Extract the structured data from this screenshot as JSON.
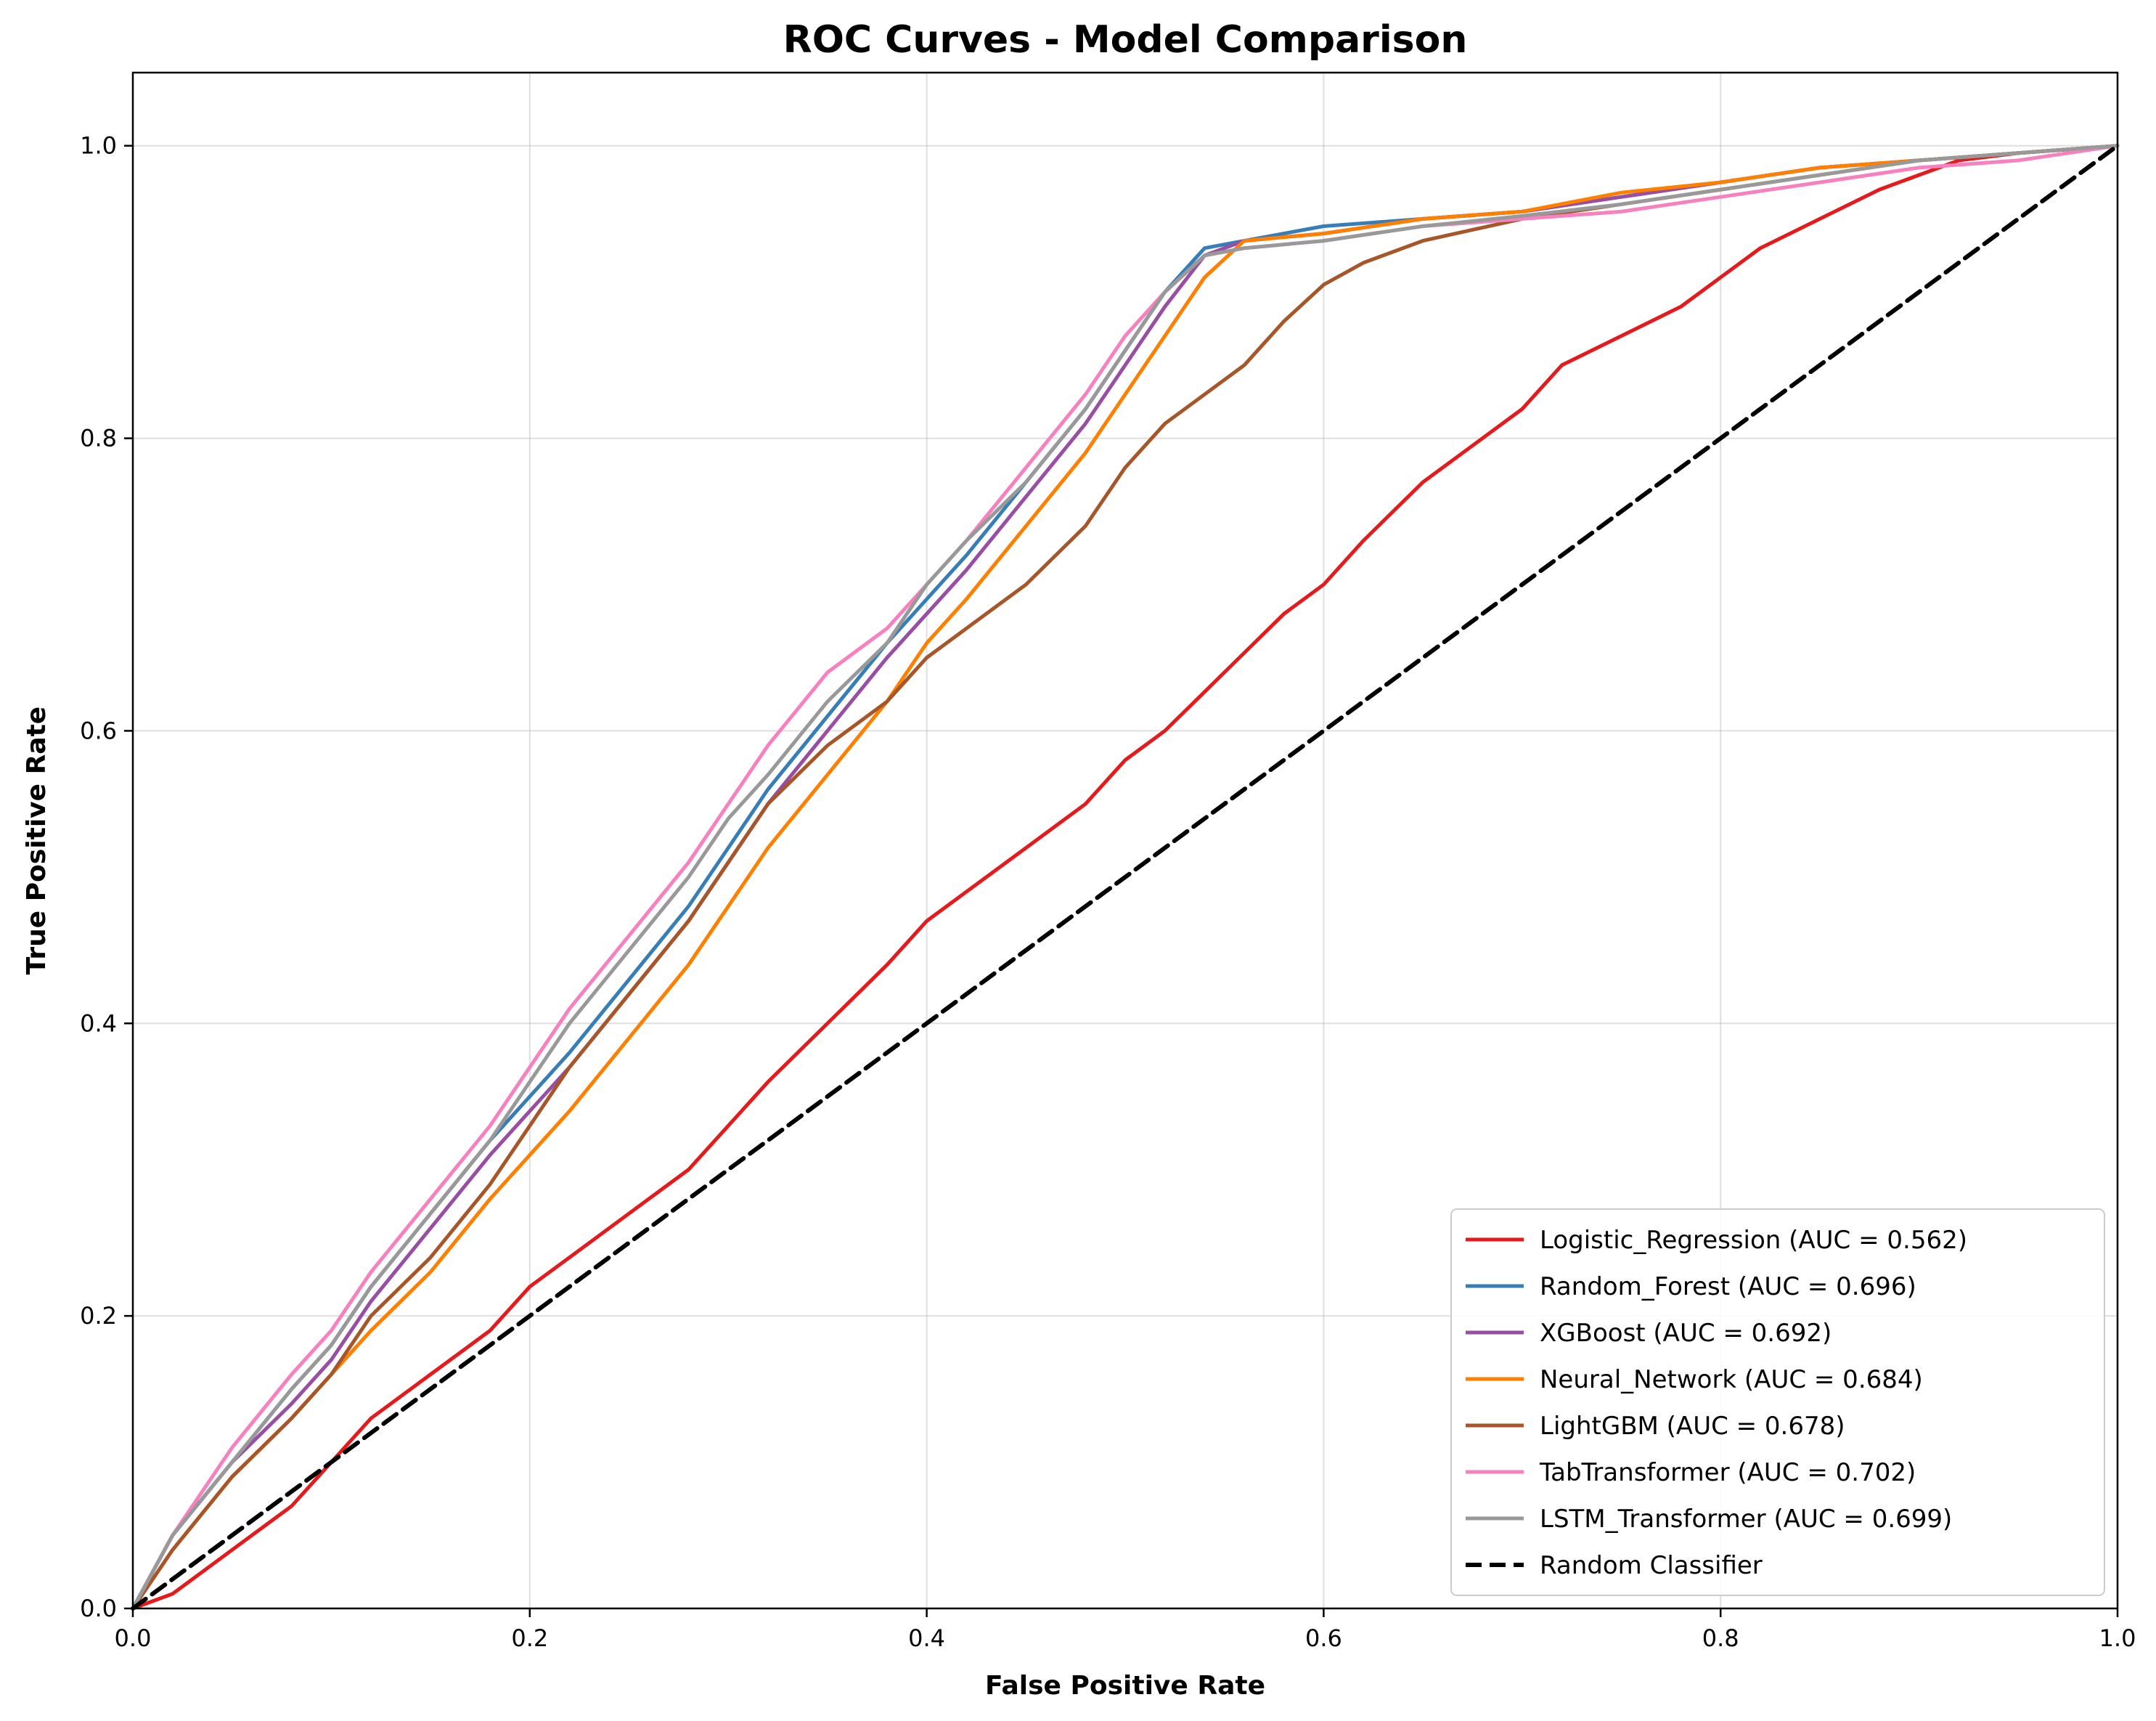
{
  "chart_data": {
    "type": "line",
    "title": "ROC Curves - Model Comparison",
    "xlabel": "False Positive Rate",
    "ylabel": "True Positive Rate",
    "xlim": [
      0,
      1
    ],
    "ylim": [
      0,
      1.05
    ],
    "x_ticks": [
      "0.0",
      "0.2",
      "0.4",
      "0.6",
      "0.8",
      "1.0"
    ],
    "y_ticks": [
      "0.0",
      "0.2",
      "0.4",
      "0.6",
      "0.8",
      "1.0"
    ],
    "grid": true,
    "legend_position": "bottom-right",
    "series": [
      {
        "name": "Logistic_Regression (AUC = 0.562)",
        "color": "#e41a1c",
        "x": [
          0,
          0.02,
          0.05,
          0.08,
          0.1,
          0.12,
          0.15,
          0.18,
          0.2,
          0.22,
          0.25,
          0.28,
          0.3,
          0.32,
          0.35,
          0.38,
          0.4,
          0.42,
          0.45,
          0.48,
          0.5,
          0.52,
          0.55,
          0.58,
          0.6,
          0.62,
          0.65,
          0.68,
          0.7,
          0.72,
          0.75,
          0.78,
          0.8,
          0.82,
          0.85,
          0.88,
          0.9,
          0.92,
          0.95,
          1.0
        ],
        "y": [
          0,
          0.01,
          0.04,
          0.07,
          0.1,
          0.13,
          0.16,
          0.19,
          0.22,
          0.24,
          0.27,
          0.3,
          0.33,
          0.36,
          0.4,
          0.44,
          0.47,
          0.49,
          0.52,
          0.55,
          0.58,
          0.6,
          0.64,
          0.68,
          0.7,
          0.73,
          0.77,
          0.8,
          0.82,
          0.85,
          0.87,
          0.89,
          0.91,
          0.93,
          0.95,
          0.97,
          0.98,
          0.99,
          0.995,
          1.0
        ]
      },
      {
        "name": "Random_Forest (AUC = 0.696)",
        "color": "#377eb8",
        "x": [
          0,
          0.02,
          0.05,
          0.08,
          0.1,
          0.12,
          0.15,
          0.18,
          0.2,
          0.22,
          0.25,
          0.28,
          0.3,
          0.32,
          0.35,
          0.38,
          0.4,
          0.42,
          0.45,
          0.48,
          0.5,
          0.52,
          0.54,
          0.56,
          0.6,
          0.65,
          0.7,
          0.75,
          0.8,
          0.85,
          0.9,
          0.95,
          1.0
        ],
        "y": [
          0,
          0.05,
          0.1,
          0.15,
          0.18,
          0.22,
          0.27,
          0.32,
          0.35,
          0.38,
          0.43,
          0.48,
          0.52,
          0.56,
          0.61,
          0.66,
          0.69,
          0.72,
          0.77,
          0.82,
          0.86,
          0.9,
          0.93,
          0.935,
          0.945,
          0.95,
          0.955,
          0.965,
          0.975,
          0.985,
          0.99,
          0.995,
          1.0
        ]
      },
      {
        "name": "XGBoost (AUC = 0.692)",
        "color": "#984ea3",
        "x": [
          0,
          0.02,
          0.05,
          0.08,
          0.1,
          0.12,
          0.15,
          0.18,
          0.2,
          0.22,
          0.25,
          0.28,
          0.3,
          0.32,
          0.35,
          0.38,
          0.4,
          0.42,
          0.45,
          0.48,
          0.5,
          0.52,
          0.54,
          0.56,
          0.6,
          0.65,
          0.7,
          0.75,
          0.8,
          0.85,
          0.9,
          0.95,
          1.0
        ],
        "y": [
          0,
          0.05,
          0.1,
          0.14,
          0.17,
          0.21,
          0.26,
          0.31,
          0.34,
          0.37,
          0.42,
          0.47,
          0.51,
          0.55,
          0.6,
          0.65,
          0.68,
          0.71,
          0.76,
          0.81,
          0.85,
          0.89,
          0.925,
          0.935,
          0.94,
          0.95,
          0.955,
          0.965,
          0.975,
          0.985,
          0.99,
          0.995,
          1.0
        ]
      },
      {
        "name": "Neural_Network (AUC = 0.684)",
        "color": "#ff7f00",
        "x": [
          0,
          0.02,
          0.05,
          0.08,
          0.1,
          0.12,
          0.15,
          0.18,
          0.2,
          0.22,
          0.25,
          0.28,
          0.3,
          0.32,
          0.35,
          0.38,
          0.4,
          0.42,
          0.45,
          0.48,
          0.5,
          0.52,
          0.54,
          0.56,
          0.6,
          0.65,
          0.7,
          0.75,
          0.8,
          0.85,
          0.9,
          0.95,
          1.0
        ],
        "y": [
          0,
          0.04,
          0.09,
          0.13,
          0.16,
          0.19,
          0.23,
          0.28,
          0.31,
          0.34,
          0.39,
          0.44,
          0.48,
          0.52,
          0.57,
          0.62,
          0.66,
          0.69,
          0.74,
          0.79,
          0.83,
          0.87,
          0.91,
          0.935,
          0.94,
          0.95,
          0.955,
          0.968,
          0.975,
          0.985,
          0.99,
          0.995,
          1.0
        ]
      },
      {
        "name": "LightGBM (AUC = 0.678)",
        "color": "#a65628",
        "x": [
          0,
          0.02,
          0.05,
          0.08,
          0.1,
          0.12,
          0.15,
          0.18,
          0.2,
          0.22,
          0.25,
          0.28,
          0.3,
          0.32,
          0.35,
          0.38,
          0.4,
          0.42,
          0.45,
          0.48,
          0.5,
          0.52,
          0.54,
          0.56,
          0.58,
          0.6,
          0.62,
          0.65,
          0.7,
          0.75,
          0.8,
          0.85,
          0.9,
          0.95,
          1.0
        ],
        "y": [
          0,
          0.04,
          0.09,
          0.13,
          0.16,
          0.2,
          0.24,
          0.29,
          0.33,
          0.37,
          0.42,
          0.47,
          0.51,
          0.55,
          0.59,
          0.62,
          0.65,
          0.67,
          0.7,
          0.74,
          0.78,
          0.81,
          0.83,
          0.85,
          0.88,
          0.905,
          0.92,
          0.935,
          0.95,
          0.96,
          0.97,
          0.98,
          0.99,
          0.995,
          1.0
        ]
      },
      {
        "name": "TabTransformer (AUC = 0.702)",
        "color": "#f781bf",
        "x": [
          0,
          0.02,
          0.05,
          0.08,
          0.1,
          0.12,
          0.15,
          0.18,
          0.2,
          0.22,
          0.25,
          0.28,
          0.3,
          0.32,
          0.35,
          0.38,
          0.4,
          0.42,
          0.45,
          0.48,
          0.5,
          0.52,
          0.54,
          0.56,
          0.6,
          0.65,
          0.7,
          0.75,
          0.8,
          0.85,
          0.9,
          0.95,
          1.0
        ],
        "y": [
          0,
          0.05,
          0.11,
          0.16,
          0.19,
          0.23,
          0.28,
          0.33,
          0.37,
          0.41,
          0.46,
          0.51,
          0.55,
          0.59,
          0.64,
          0.67,
          0.7,
          0.73,
          0.78,
          0.83,
          0.87,
          0.9,
          0.925,
          0.93,
          0.935,
          0.945,
          0.95,
          0.955,
          0.965,
          0.975,
          0.985,
          0.99,
          1.0
        ]
      },
      {
        "name": "LSTM_Transformer (AUC = 0.699)",
        "color": "#999999",
        "x": [
          0,
          0.02,
          0.05,
          0.08,
          0.1,
          0.12,
          0.15,
          0.18,
          0.2,
          0.22,
          0.25,
          0.28,
          0.3,
          0.32,
          0.35,
          0.38,
          0.4,
          0.42,
          0.45,
          0.48,
          0.5,
          0.52,
          0.54,
          0.56,
          0.6,
          0.65,
          0.7,
          0.75,
          0.8,
          0.85,
          0.9,
          0.95,
          1.0
        ],
        "y": [
          0,
          0.05,
          0.1,
          0.15,
          0.18,
          0.22,
          0.27,
          0.32,
          0.36,
          0.4,
          0.45,
          0.5,
          0.54,
          0.57,
          0.62,
          0.66,
          0.7,
          0.73,
          0.77,
          0.82,
          0.86,
          0.9,
          0.925,
          0.93,
          0.935,
          0.945,
          0.952,
          0.96,
          0.97,
          0.98,
          0.99,
          0.995,
          1.0
        ]
      },
      {
        "name": "Random Classifier",
        "color": "#000000",
        "dashed": true,
        "x": [
          0,
          1
        ],
        "y": [
          0,
          1
        ]
      }
    ]
  }
}
